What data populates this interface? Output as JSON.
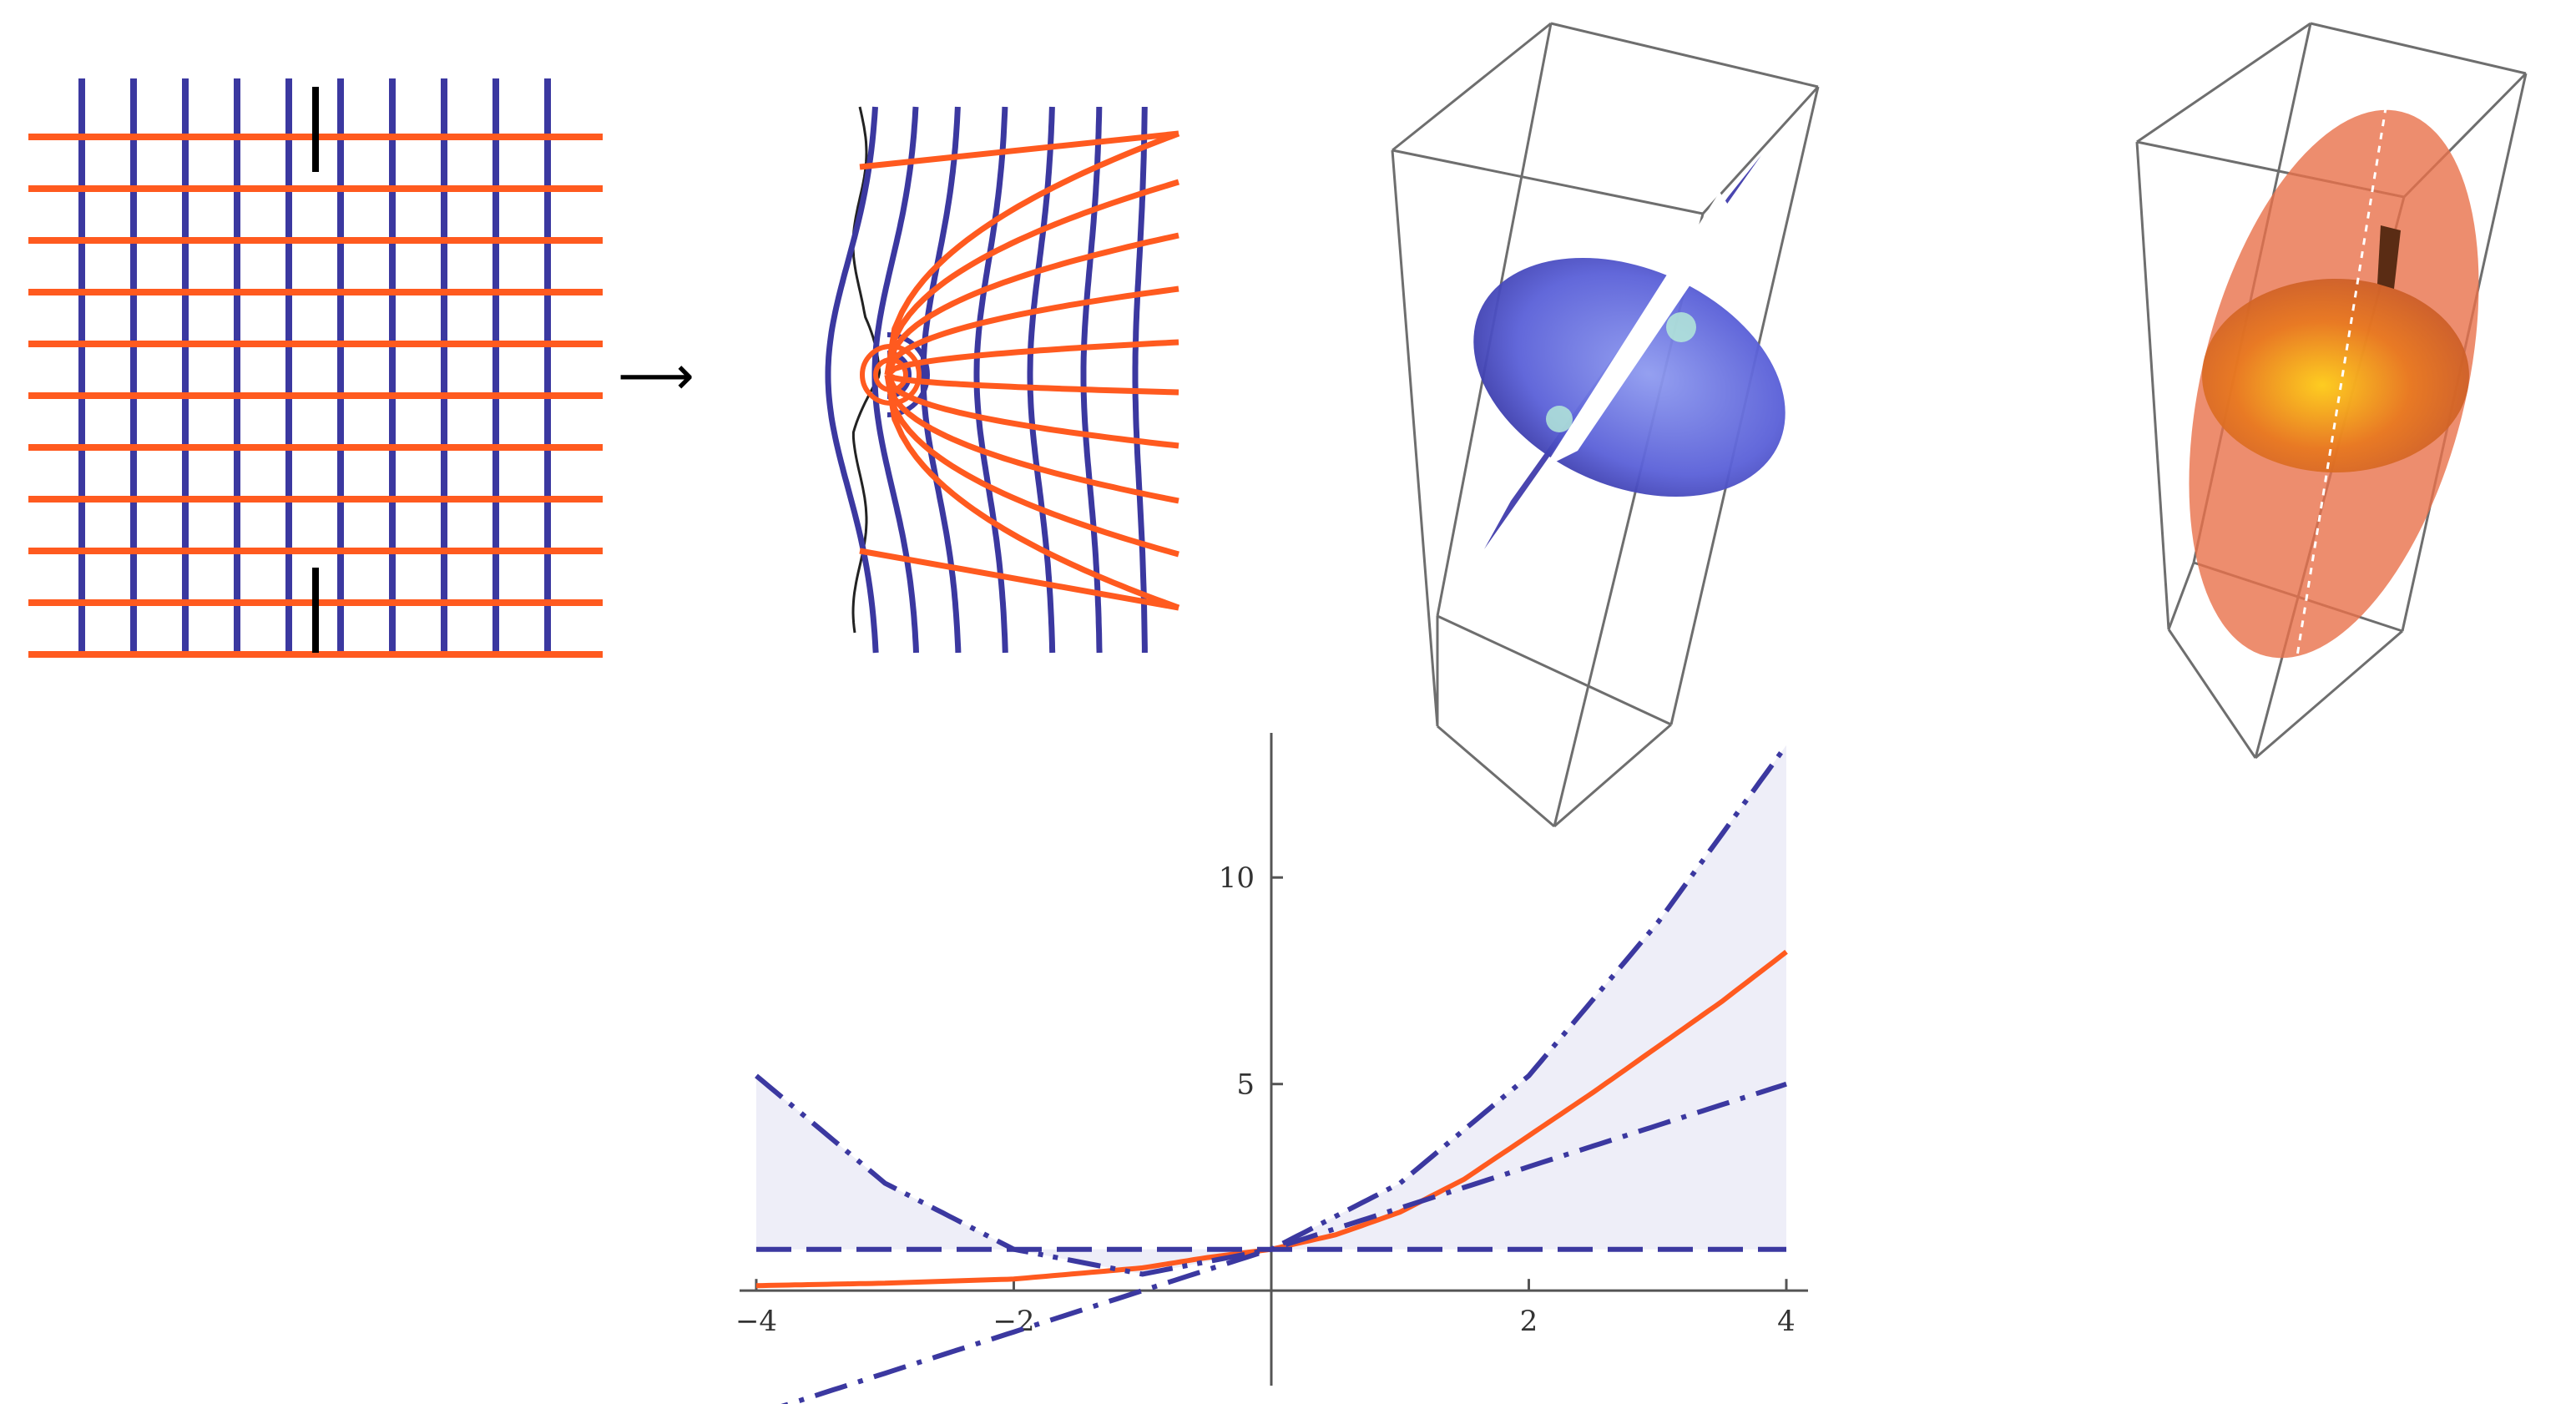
{
  "colors": {
    "orange": "#ff5a1f",
    "blue": "#3b38a0",
    "black": "#000000",
    "box": "#6e6e6e",
    "band": "#eeeef8"
  },
  "panels": {
    "arrow_symbol": "⟶"
  },
  "chart_data": {
    "type": "line",
    "xlim": [
      -4,
      4
    ],
    "ylim": [
      -2.3,
      13.5
    ],
    "x_ticks": [
      {
        "value": -4,
        "label": "−4"
      },
      {
        "value": -2,
        "label": "−2"
      },
      {
        "value": 2,
        "label": "2"
      },
      {
        "value": 4,
        "label": "4"
      }
    ],
    "y_ticks": [
      {
        "value": 5,
        "label": "5"
      },
      {
        "value": 10,
        "label": "10"
      }
    ],
    "series": [
      {
        "style": "solid",
        "color": "orange",
        "x": [
          -4,
          -3,
          -2,
          -1,
          -0.5,
          0,
          0.5,
          1,
          1.5,
          2,
          2.5,
          3,
          3.5,
          4
        ],
        "y": [
          0.12,
          0.18,
          0.28,
          0.55,
          0.8,
          1.0,
          1.35,
          1.9,
          2.7,
          3.75,
          4.8,
          5.9,
          7.0,
          8.2
        ]
      },
      {
        "style": "dashed",
        "color": "blue",
        "x": [
          -4,
          4
        ],
        "y": [
          1,
          1
        ]
      },
      {
        "style": "dashdot",
        "color": "blue",
        "x": [
          -4,
          4
        ],
        "y": [
          -3,
          5
        ]
      },
      {
        "style": "dashdotdot",
        "color": "blue",
        "x": [
          -4,
          -3,
          -2,
          -1,
          0,
          1,
          2,
          3,
          4
        ],
        "y": [
          5.2,
          2.6,
          1.0,
          0.4,
          1.0,
          2.6,
          5.2,
          8.9,
          13.2
        ]
      }
    ],
    "band": {
      "upper": "dashdotdot",
      "lower": "dashed"
    }
  }
}
